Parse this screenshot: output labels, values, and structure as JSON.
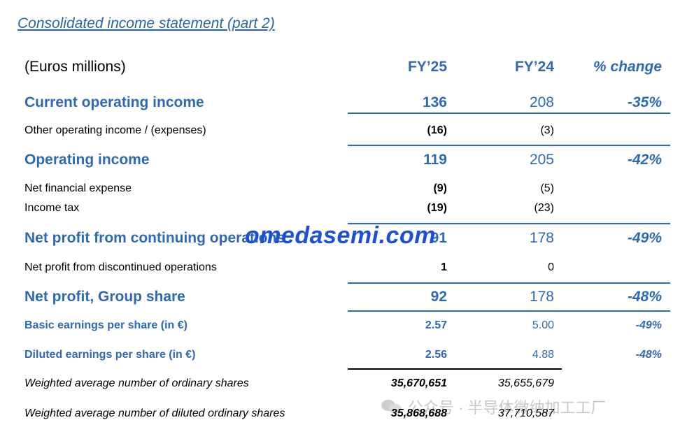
{
  "title": "Consolidated income statement (part 2)",
  "header": {
    "unit": "(Euros millions)",
    "col_fy25": "FY’25",
    "col_fy24": "FY’24",
    "col_change": "% change"
  },
  "rows": [
    {
      "label": "Current operating income",
      "fy25": "136",
      "fy24": "208",
      "change": "-35%"
    },
    {
      "label": "Other operating income / (expenses)",
      "fy25": "(16)",
      "fy24": "(3)",
      "change": ""
    },
    {
      "label": "Operating income",
      "fy25": "119",
      "fy24": "205",
      "change": "-42%"
    },
    {
      "label": "Net financial expense",
      "fy25": "(9)",
      "fy24": "(5)",
      "change": ""
    },
    {
      "label": "Income tax",
      "fy25": "(19)",
      "fy24": "(23)",
      "change": ""
    },
    {
      "label": "Net profit from continuing operations",
      "fy25": "91",
      "fy24": "178",
      "change": "-49%"
    },
    {
      "label": "Net profit from discontinued operations",
      "fy25": "1",
      "fy24": "0",
      "change": ""
    },
    {
      "label": "Net profit, Group share",
      "fy25": "92",
      "fy24": "178",
      "change": "-48%"
    },
    {
      "label": "Basic earnings per share (in €)",
      "fy25": "2.57",
      "fy24": "5.00",
      "change": "-49%"
    },
    {
      "label": "Diluted earnings per share (in €)",
      "fy25": "2.56",
      "fy24": "4.88",
      "change": "-48%"
    },
    {
      "label": "Weighted average number of ordinary shares",
      "fy25": "35,670,651",
      "fy24": "35,655,679",
      "change": ""
    },
    {
      "label": "Weighted average number of diluted ordinary shares",
      "fy25": "35,868,688",
      "fy24": "37,710,587",
      "change": ""
    }
  ],
  "watermark": "omedasemi.com",
  "wechat_caption": "公众号 · 半导体微纳加工工厂",
  "colors": {
    "accent_blue": "#2e6ab4",
    "title_blue": "#2a65a6",
    "watermark_blue": "#1d4fd8"
  }
}
